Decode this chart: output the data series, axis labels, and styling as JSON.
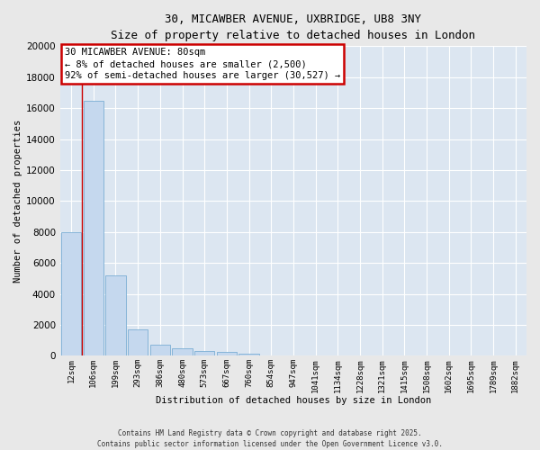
{
  "title_line1": "30, MICAWBER AVENUE, UXBRIDGE, UB8 3NY",
  "title_line2": "Size of property relative to detached houses in London",
  "xlabel": "Distribution of detached houses by size in London",
  "ylabel": "Number of detached properties",
  "bar_labels": [
    "12sqm",
    "106sqm",
    "199sqm",
    "293sqm",
    "386sqm",
    "480sqm",
    "573sqm",
    "667sqm",
    "760sqm",
    "854sqm",
    "947sqm",
    "1041sqm",
    "1134sqm",
    "1228sqm",
    "1321sqm",
    "1415sqm",
    "1508sqm",
    "1602sqm",
    "1695sqm",
    "1789sqm",
    "1882sqm"
  ],
  "bar_values": [
    8000,
    16500,
    5200,
    1700,
    750,
    480,
    340,
    240,
    120,
    0,
    0,
    0,
    0,
    0,
    0,
    0,
    0,
    0,
    0,
    0,
    0
  ],
  "bar_color": "#c5d8ee",
  "bar_edge_color": "#7aaed4",
  "property_line_x": 0.5,
  "annotation_title": "30 MICAWBER AVENUE: 80sqm",
  "annotation_line1": "← 8% of detached houses are smaller (2,500)",
  "annotation_line2": "92% of semi-detached houses are larger (30,527) →",
  "annotation_box_color": "#ffffff",
  "annotation_box_edge": "#cc0000",
  "line_color": "#cc0000",
  "ylim": [
    0,
    20000
  ],
  "yticks": [
    0,
    2000,
    4000,
    6000,
    8000,
    10000,
    12000,
    14000,
    16000,
    18000,
    20000
  ],
  "background_color": "#dce6f1",
  "fig_background": "#e8e8e8",
  "footer_line1": "Contains HM Land Registry data © Crown copyright and database right 2025.",
  "footer_line2": "Contains public sector information licensed under the Open Government Licence v3.0."
}
